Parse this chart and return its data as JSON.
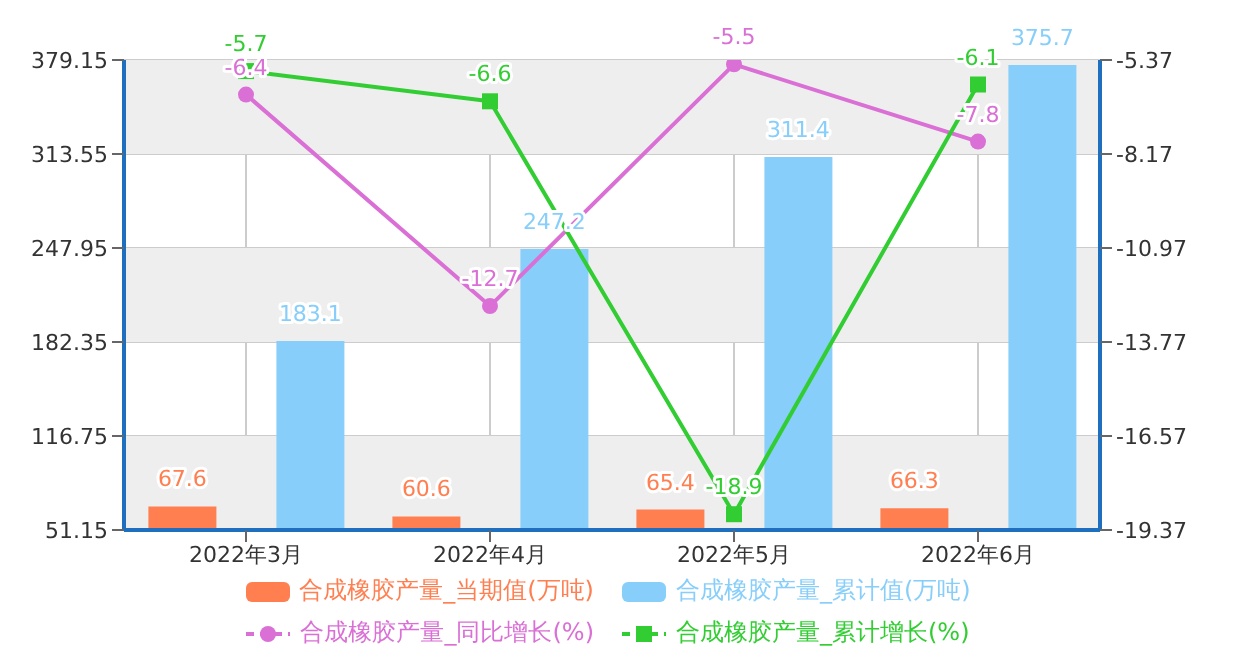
{
  "chart_data": {
    "type": "bar",
    "categories": [
      "2022年3月",
      "2022年4月",
      "2022年5月",
      "2022年6月"
    ],
    "series": [
      {
        "name": "合成橡胶产量_当期值(万吨)",
        "color": "#ff7f50",
        "values": [
          67.6,
          60.6,
          65.4,
          66.3
        ]
      },
      {
        "name": "合成橡胶产量_累计值(万吨)",
        "color": "#87cefa",
        "values": [
          183.1,
          247.2,
          311.4,
          375.7
        ]
      },
      {
        "name": "合成橡胶产量_同比增长(%)",
        "type": "line",
        "axis": "y2",
        "marker": "circle",
        "color": "#da70d6",
        "values": [
          -6.4,
          -12.7,
          -5.5,
          -7.8
        ]
      },
      {
        "name": "合成橡胶产量_累计增长(%)",
        "type": "line",
        "axis": "y2",
        "marker": "square",
        "color": "#32cd32",
        "values": [
          -5.7,
          -6.6,
          -18.9,
          -6.1
        ]
      }
    ],
    "ylim": [
      51.15,
      379.15
    ],
    "yticks": [
      51.15,
      116.75,
      182.35,
      247.95,
      313.55,
      379.15
    ],
    "y2lim": [
      -19.37,
      -5.37
    ],
    "y2ticks": [
      -19.37,
      -16.57,
      -13.77,
      -10.97,
      -8.17,
      -5.37
    ],
    "grid": true,
    "legend": "bottom",
    "data_labels": true,
    "line_style": "solid"
  }
}
